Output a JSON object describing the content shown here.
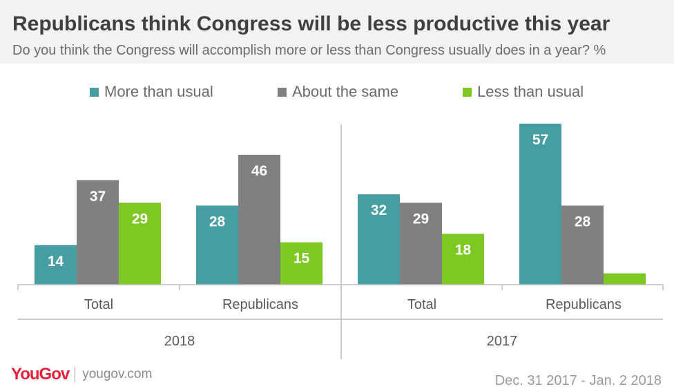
{
  "header": {
    "title": "Republicans think Congress will be less productive this year",
    "subtitle": "Do you think the Congress will accomplish more or less than Congress usually does in a year? %"
  },
  "footer": {
    "brand": "YouGov",
    "url": "yougov.com",
    "date_range": "Dec. 31 2017 - Jan. 2 2018"
  },
  "colors": {
    "more": "#469ea2",
    "same": "#808080",
    "less": "#7dc823",
    "axis": "#bdbdbd"
  },
  "chart_data": {
    "type": "bar",
    "groups": [
      "2018",
      "2017"
    ],
    "categories": [
      "Total",
      "Republicans",
      "Total",
      "Republicans"
    ],
    "category_groups": [
      "2018",
      "2018",
      "2017",
      "2017"
    ],
    "series": [
      {
        "name": "More than usual",
        "values": [
          14,
          28,
          32,
          57
        ],
        "color_key": "more"
      },
      {
        "name": "About the same",
        "values": [
          37,
          46,
          29,
          28
        ],
        "color_key": "same"
      },
      {
        "name": "Less than usual",
        "values": [
          29,
          15,
          18,
          4
        ],
        "color_key": "less"
      }
    ],
    "legend_position": "top",
    "ylim": [
      0,
      57
    ],
    "grid": false
  }
}
